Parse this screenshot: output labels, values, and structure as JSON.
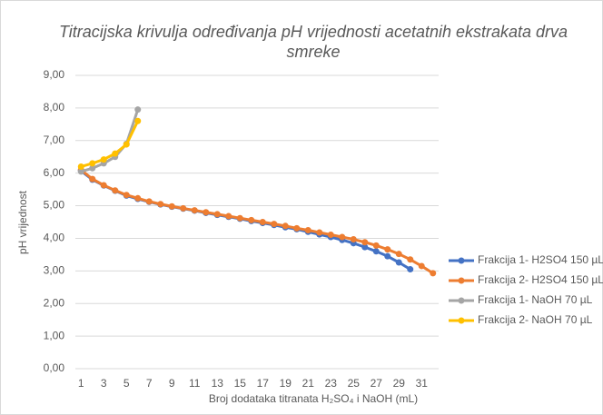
{
  "chart_data": {
    "type": "line",
    "title": "Titracijska krivulja određivanja pH vrijednosti acetatnih ekstrakata drva smreke",
    "x_label": "Broj dodataka titranata H₂SO₄ i NaOH (mL)",
    "y_label": "pH vrijednost",
    "categories": [
      1,
      null,
      3,
      null,
      5,
      null,
      7,
      null,
      9,
      null,
      11,
      null,
      13,
      null,
      15,
      null,
      17,
      null,
      19,
      null,
      21,
      null,
      23,
      null,
      25,
      null,
      27,
      null,
      29,
      null,
      31,
      null
    ],
    "series": [
      {
        "name": "Frakcija 1- H2SO4 150 µL",
        "color": "#4472c4",
        "values": [
          6.07,
          5.8,
          5.62,
          5.46,
          5.31,
          5.21,
          5.12,
          5.04,
          4.97,
          4.91,
          4.85,
          4.78,
          4.72,
          4.66,
          4.6,
          4.53,
          4.47,
          4.41,
          4.34,
          4.28,
          4.2,
          4.12,
          4.04,
          3.95,
          3.85,
          3.73,
          3.6,
          3.45,
          3.26,
          3.05,
          null,
          null
        ]
      },
      {
        "name": "Frakcija 2- H2SO4 150 µL",
        "color": "#ed7d31",
        "values": [
          6.1,
          5.82,
          5.63,
          5.47,
          5.33,
          5.23,
          5.13,
          5.05,
          4.98,
          4.92,
          4.86,
          4.8,
          4.74,
          4.68,
          4.62,
          4.56,
          4.5,
          4.44,
          4.38,
          4.31,
          4.25,
          4.18,
          4.11,
          4.04,
          3.97,
          3.88,
          3.78,
          3.66,
          3.52,
          3.35,
          3.15,
          2.93
        ]
      },
      {
        "name": "Frakcija 1- NaOH 70 µL",
        "color": "#a5a5a5",
        "values": [
          6.05,
          6.15,
          6.3,
          6.5,
          6.9,
          7.95,
          null,
          null,
          null,
          null,
          null,
          null,
          null,
          null,
          null,
          null,
          null,
          null,
          null,
          null,
          null,
          null,
          null,
          null,
          null,
          null,
          null,
          null,
          null,
          null,
          null,
          null
        ]
      },
      {
        "name": "Frakcija 2- NaOH 70 µL",
        "color": "#ffc000",
        "values": [
          6.2,
          6.3,
          6.42,
          6.6,
          6.88,
          7.6,
          null,
          null,
          null,
          null,
          null,
          null,
          null,
          null,
          null,
          null,
          null,
          null,
          null,
          null,
          null,
          null,
          null,
          null,
          null,
          null,
          null,
          null,
          null,
          null,
          null,
          null
        ]
      }
    ],
    "ylim": [
      0,
      9
    ],
    "yticks": [
      {
        "value": 0,
        "label": "0,00"
      },
      {
        "value": 1,
        "label": "1,00"
      },
      {
        "value": 2,
        "label": "2,00"
      },
      {
        "value": 3,
        "label": "3,00"
      },
      {
        "value": 4,
        "label": "4,00"
      },
      {
        "value": 5,
        "label": "5,00"
      },
      {
        "value": 6,
        "label": "6,00"
      },
      {
        "value": 7,
        "label": "7,00"
      },
      {
        "value": 8,
        "label": "8,00"
      },
      {
        "value": 9,
        "label": "9,00"
      }
    ],
    "grid": true,
    "legend": "right"
  }
}
